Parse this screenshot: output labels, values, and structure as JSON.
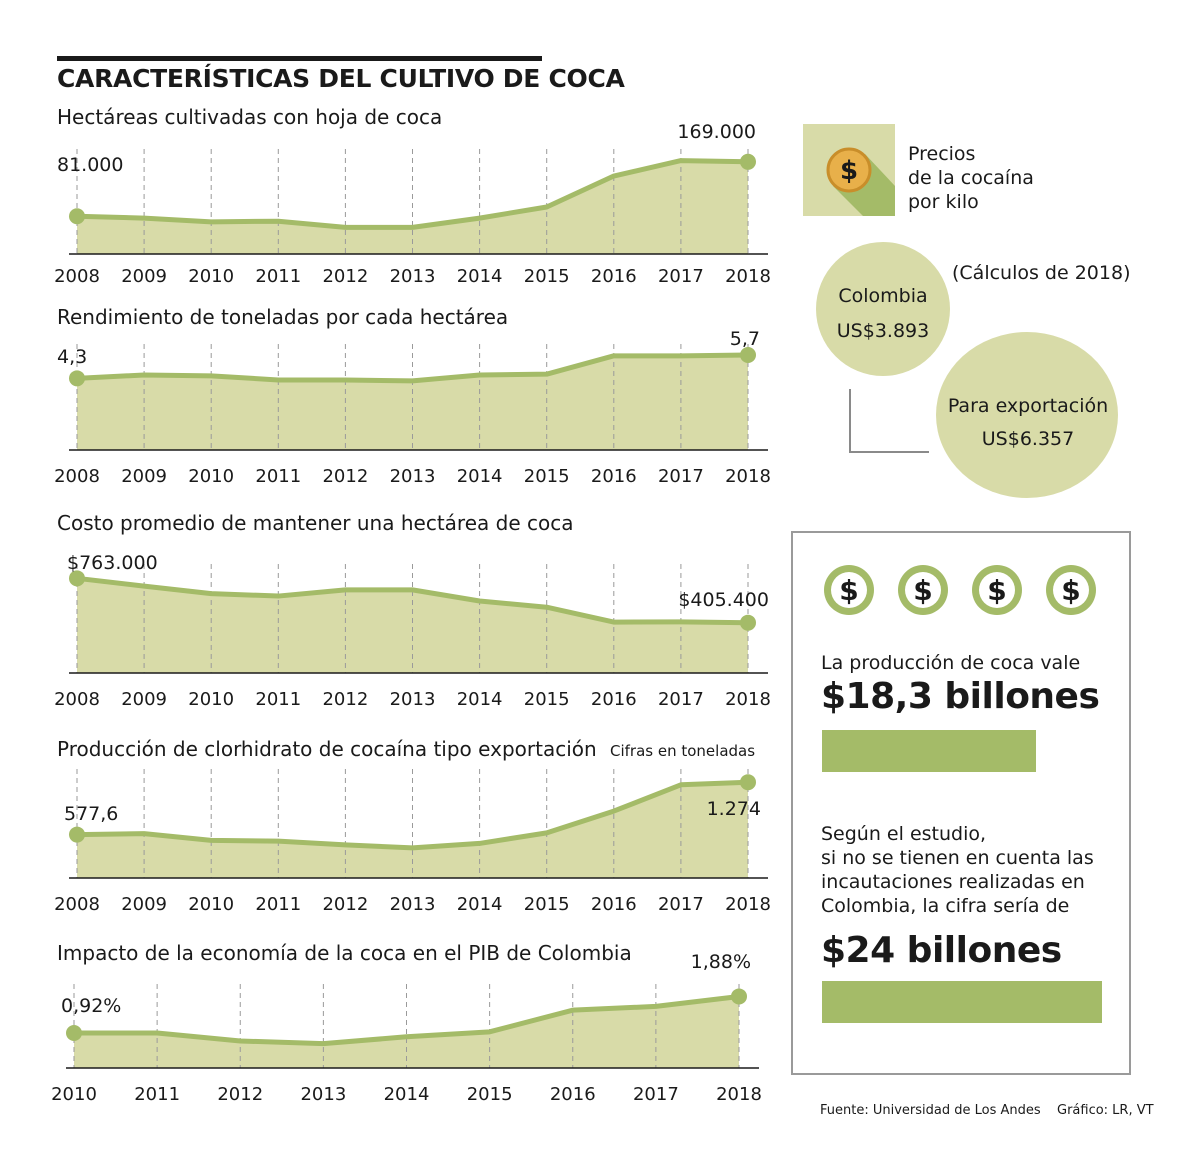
{
  "header": {
    "title": "CARACTERÍSTICAS DEL CULTIVO DE COCA"
  },
  "colors": {
    "fill": "#d8dba8",
    "line": "#a4bb68",
    "bar": "#a4bb68",
    "marker": "#a4bb68"
  },
  "chart_data": [
    {
      "type": "area",
      "title": "Hectáreas cultivadas con hoja de coca",
      "x": [
        "2008",
        "2009",
        "2010",
        "2011",
        "2012",
        "2013",
        "2014",
        "2015",
        "2016",
        "2017",
        "2018"
      ],
      "values": [
        81000,
        78000,
        72000,
        73000,
        63000,
        63000,
        78000,
        96000,
        146000,
        171000,
        169000
      ],
      "ylim": [
        20000,
        180000
      ],
      "data_labels": [
        {
          "index": 0,
          "text": "81.000"
        },
        {
          "index": 10,
          "text": "169.000"
        }
      ],
      "note": ""
    },
    {
      "type": "area",
      "title": "Rendimiento de toneladas por cada hectárea",
      "x": [
        "2008",
        "2009",
        "2010",
        "2011",
        "2012",
        "2013",
        "2014",
        "2015",
        "2016",
        "2017",
        "2018"
      ],
      "values": [
        4.3,
        4.5,
        4.45,
        4.2,
        4.2,
        4.15,
        4.5,
        4.55,
        5.65,
        5.65,
        5.7
      ],
      "ylim": [
        0,
        6.0
      ],
      "data_labels": [
        {
          "index": 0,
          "text": "4,3"
        },
        {
          "index": 10,
          "text": "5,7"
        }
      ],
      "note": ""
    },
    {
      "type": "area",
      "title": "Costo promedio de mantener una hectárea de coca",
      "x": [
        "2008",
        "2009",
        "2010",
        "2011",
        "2012",
        "2013",
        "2014",
        "2015",
        "2016",
        "2017",
        "2018"
      ],
      "values": [
        763000,
        700000,
        640000,
        620000,
        670000,
        670000,
        580000,
        530000,
        410000,
        412000,
        405400
      ],
      "ylim": [
        0,
        830000
      ],
      "data_labels": [
        {
          "index": 0,
          "text": "$763.000"
        },
        {
          "index": 10,
          "text": "$405.400"
        }
      ],
      "note": ""
    },
    {
      "type": "area",
      "title": "Producción de clorhidrato de cocaína tipo exportación",
      "x": [
        "2008",
        "2009",
        "2010",
        "2011",
        "2012",
        "2013",
        "2014",
        "2015",
        "2016",
        "2017",
        "2018"
      ],
      "values": [
        577.6,
        590,
        500,
        490,
        440,
        400,
        460,
        600,
        890,
        1240,
        1274
      ],
      "ylim": [
        0,
        1370
      ],
      "data_labels": [
        {
          "index": 0,
          "text": "577,6"
        },
        {
          "index": 10,
          "text": "1.274"
        }
      ],
      "note": "Cifras en toneladas"
    },
    {
      "type": "area",
      "title": "Impacto de la economía de la coca en el PIB de Colombia",
      "x": [
        "2010",
        "2011",
        "2012",
        "2013",
        "2014",
        "2015",
        "2016",
        "2017",
        "2018"
      ],
      "values": [
        0.92,
        0.92,
        0.71,
        0.64,
        0.82,
        0.95,
        1.52,
        1.62,
        1.88
      ],
      "ylim": [
        0,
        2.05
      ],
      "data_labels": [
        {
          "index": 0,
          "text": "0,92%"
        },
        {
          "index": 8,
          "text": "1,88%"
        }
      ],
      "note": ""
    }
  ],
  "prices": {
    "title_lines": [
      "Precios",
      "de la cocaína",
      "por kilo"
    ],
    "icon": "dollar-coin-icon",
    "note": "(Cálculos de 2018)",
    "colombia": {
      "label": "Colombia",
      "value": "US$3.893"
    },
    "export": {
      "label": "Para exportación",
      "value": "US$6.357"
    }
  },
  "summary": {
    "icons": [
      "dollar-coin-icon",
      "dollar-coin-icon",
      "dollar-coin-icon",
      "dollar-coin-icon"
    ],
    "production_label": "La producción de coca vale",
    "production_value": "$18,3 billones",
    "production_amount": 18.3,
    "study_lines": [
      "Según el estudio,",
      "si no se tienen en cuenta las",
      "incautaciones realizadas en",
      "Colombia, la cifra sería de"
    ],
    "study_value": "$24 billones",
    "study_amount": 24
  },
  "footer": {
    "source": "Fuente: Universidad de Los Andes",
    "credit": "Gráfico: LR, VT"
  }
}
